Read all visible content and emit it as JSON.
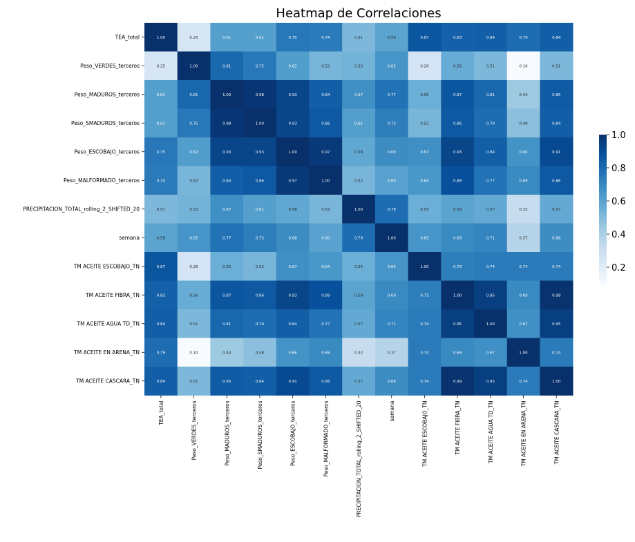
{
  "chart_data": {
    "type": "heatmap",
    "title": "Heatmap de Correlaciones",
    "labels": [
      "TEA_total",
      "Peso_VERDES_terceros",
      "Peso_MADUROS_terceros",
      "Peso_SMADUROS_terceros",
      "Peso_ESCOBAJO_terceros",
      "Peso_MALFORMADO_terceros",
      "PRECIPITACION_TOTAL_rolling_2_SHIFTED_20",
      "semana",
      "TM ACEITE ESCOBAJO_TN",
      "TM ACEITE FIBRA_TN",
      "TM ACEITE AGUA TD_TN",
      "TM ACEITE EN ARENA_TN",
      "TM ACEITE CASCARA_TN"
    ],
    "matrix": [
      [
        1.0,
        0.25,
        0.61,
        0.61,
        0.75,
        0.74,
        0.51,
        0.59,
        0.87,
        0.83,
        0.84,
        0.79,
        0.84
      ],
      [
        0.25,
        1.0,
        0.81,
        0.75,
        0.62,
        0.52,
        0.53,
        0.65,
        0.26,
        0.56,
        0.51,
        0.1,
        0.51
      ],
      [
        0.61,
        0.81,
        1.0,
        0.98,
        0.93,
        0.84,
        0.67,
        0.77,
        0.55,
        0.87,
        0.81,
        0.44,
        0.85
      ],
      [
        0.61,
        0.75,
        0.98,
        1.0,
        0.93,
        0.86,
        0.61,
        0.73,
        0.52,
        0.86,
        0.79,
        0.48,
        0.84
      ],
      [
        0.75,
        0.62,
        0.93,
        0.93,
        1.0,
        0.97,
        0.58,
        0.68,
        0.67,
        0.93,
        0.84,
        0.66,
        0.91
      ],
      [
        0.74,
        0.52,
        0.84,
        0.86,
        0.97,
        1.0,
        0.52,
        0.6,
        0.64,
        0.89,
        0.77,
        0.69,
        0.86
      ],
      [
        0.51,
        0.53,
        0.67,
        0.61,
        0.58,
        0.52,
        1.0,
        0.79,
        0.55,
        0.59,
        0.57,
        0.32,
        0.57
      ],
      [
        0.59,
        0.65,
        0.77,
        0.73,
        0.68,
        0.6,
        0.79,
        1.0,
        0.65,
        0.69,
        0.71,
        0.37,
        0.68
      ],
      [
        0.87,
        0.26,
        0.55,
        0.52,
        0.67,
        0.64,
        0.55,
        0.65,
        1.0,
        0.73,
        0.74,
        0.74,
        0.74
      ],
      [
        0.83,
        0.56,
        0.87,
        0.86,
        0.93,
        0.89,
        0.59,
        0.69,
        0.73,
        1.0,
        0.95,
        0.69,
        0.99
      ],
      [
        0.84,
        0.51,
        0.81,
        0.79,
        0.84,
        0.77,
        0.57,
        0.71,
        0.74,
        0.95,
        1.0,
        0.67,
        0.95
      ],
      [
        0.79,
        0.1,
        0.44,
        0.48,
        0.66,
        0.69,
        0.32,
        0.37,
        0.74,
        0.69,
        0.67,
        1.0,
        0.74
      ],
      [
        0.84,
        0.51,
        0.85,
        0.84,
        0.91,
        0.86,
        0.57,
        0.68,
        0.74,
        0.99,
        0.95,
        0.74,
        1.0
      ]
    ],
    "colorscale": "Blues",
    "vmin": 0.1,
    "vmax": 1.0,
    "colorbar_ticks": [
      "0.2",
      "0.4",
      "0.6",
      "0.8",
      "1.0"
    ],
    "annotations": "two-decimal values shown in each cell"
  }
}
